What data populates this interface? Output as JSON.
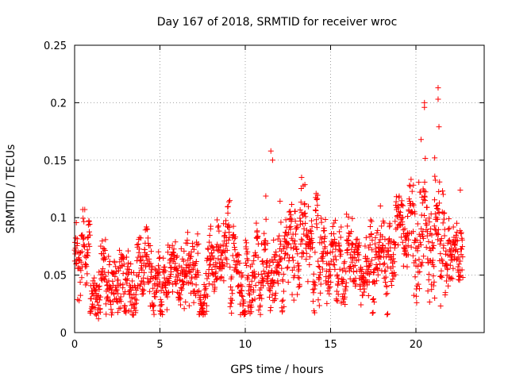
{
  "chart_data": {
    "type": "scatter",
    "title": "Day 167 of 2018, SRMTID for receiver wroc",
    "xlabel": "GPS time / hours",
    "ylabel": "SRMTID / TECUs",
    "xlim": [
      0,
      24
    ],
    "ylim": [
      0,
      0.25
    ],
    "xticks": [
      0,
      5,
      10,
      15,
      20
    ],
    "xtick_labels": [
      "0",
      "5",
      "10",
      "15",
      "20"
    ],
    "yticks": [
      0,
      0.05,
      0.1,
      0.15,
      0.2,
      0.25
    ],
    "ytick_labels": [
      "0",
      "0.05",
      "0.1",
      "0.15",
      "0.2",
      "0.25"
    ],
    "grid": true,
    "marker": "+",
    "color": "#ff0000",
    "series": [
      {
        "name": "SRMTID",
        "x_start": 0.0,
        "x_end": 22.75,
        "n_points": 1800,
        "baseline_profile": [
          [
            0.0,
            0.062
          ],
          [
            1.0,
            0.058
          ],
          [
            2.0,
            0.055
          ],
          [
            3.0,
            0.052
          ],
          [
            4.0,
            0.05
          ],
          [
            5.0,
            0.05
          ],
          [
            6.0,
            0.048
          ],
          [
            7.0,
            0.05
          ],
          [
            8.0,
            0.06
          ],
          [
            9.0,
            0.062
          ],
          [
            10.0,
            0.055
          ],
          [
            11.0,
            0.06
          ],
          [
            12.0,
            0.065
          ],
          [
            13.0,
            0.07
          ],
          [
            14.0,
            0.065
          ],
          [
            15.0,
            0.068
          ],
          [
            16.0,
            0.065
          ],
          [
            17.0,
            0.065
          ],
          [
            18.0,
            0.07
          ],
          [
            19.0,
            0.078
          ],
          [
            20.0,
            0.095
          ],
          [
            20.5,
            0.11
          ],
          [
            21.0,
            0.085
          ],
          [
            21.5,
            0.07
          ],
          [
            22.0,
            0.062
          ],
          [
            22.75,
            0.06
          ]
        ],
        "spread": 0.022,
        "notable_points": [
          {
            "x": 1.4,
            "y": 0.012
          },
          {
            "x": 11.5,
            "y": 0.158
          },
          {
            "x": 11.6,
            "y": 0.15
          },
          {
            "x": 13.3,
            "y": 0.135
          },
          {
            "x": 20.3,
            "y": 0.168
          },
          {
            "x": 20.5,
            "y": 0.2
          },
          {
            "x": 20.5,
            "y": 0.196
          },
          {
            "x": 21.1,
            "y": 0.152
          },
          {
            "x": 21.3,
            "y": 0.213
          },
          {
            "x": 21.3,
            "y": 0.203
          },
          {
            "x": 21.35,
            "y": 0.179
          },
          {
            "x": 21.1,
            "y": 0.03
          },
          {
            "x": 22.6,
            "y": 0.124
          }
        ]
      }
    ]
  }
}
